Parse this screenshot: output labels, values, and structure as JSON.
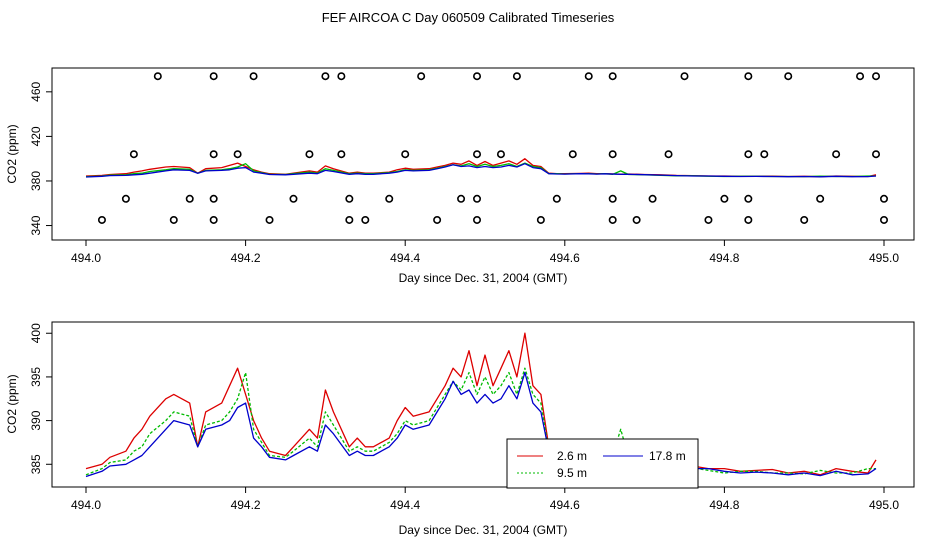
{
  "figure_title": "FEF AIRCOA C  Day 060509  Calibrated Timeseries",
  "colors": {
    "red": "#dd0000",
    "green": "#00bb00",
    "blue": "#0000cc",
    "axis": "#000000"
  },
  "chart_data": [
    {
      "type": "scatter",
      "title": "",
      "xlabel": "Day since Dec. 31, 2004 (GMT)",
      "ylabel": "CO2 (ppm)",
      "xlim": [
        494.0,
        495.0
      ],
      "ylim": [
        336,
        476
      ],
      "xticks": [
        "494.0",
        "494.2",
        "494.4",
        "494.6",
        "494.8",
        "495.0"
      ],
      "yticks": [
        "340",
        "380",
        "420",
        "460"
      ],
      "grid": false,
      "markers": {
        "y_levels": [
          345,
          364,
          404,
          474
        ],
        "x474": [
          494.09,
          494.16,
          494.21,
          494.3,
          494.32,
          494.42,
          494.49,
          494.54,
          494.63,
          494.66,
          494.75,
          494.83,
          494.88,
          494.97,
          494.99
        ],
        "x404": [
          494.06,
          494.16,
          494.19,
          494.28,
          494.32,
          494.4,
          494.49,
          494.52,
          494.61,
          494.66,
          494.73,
          494.83,
          494.85,
          494.94,
          494.99
        ],
        "x364": [
          494.05,
          494.13,
          494.16,
          494.26,
          494.33,
          494.38,
          494.47,
          494.49,
          494.59,
          494.66,
          494.71,
          494.8,
          494.83,
          494.92,
          495.0
        ],
        "x345": [
          494.02,
          494.11,
          494.16,
          494.23,
          494.33,
          494.35,
          494.44,
          494.49,
          494.57,
          494.66,
          494.69,
          494.78,
          494.83,
          494.9,
          495.0
        ]
      }
    },
    {
      "type": "line",
      "title": "",
      "xlabel": "Day since Dec. 31, 2004 (GMT)",
      "ylabel": "CO2 (ppm)",
      "xlim": [
        494.0,
        495.0
      ],
      "ylim": [
        383.2,
        400.6
      ],
      "xticks": [
        "494.0",
        "494.2",
        "494.4",
        "494.6",
        "494.8",
        "495.0"
      ],
      "yticks": [
        "385",
        "390",
        "395",
        "400"
      ],
      "grid": false,
      "legend_position": "bottom-center",
      "series": [
        {
          "name": "2.6 m",
          "color": "#dd0000",
          "x": [
            494.0,
            494.02,
            494.03,
            494.05,
            494.06,
            494.07,
            494.08,
            494.1,
            494.11,
            494.13,
            494.14,
            494.15,
            494.17,
            494.18,
            494.19,
            494.2,
            494.21,
            494.22,
            494.23,
            494.25,
            494.26,
            494.28,
            494.29,
            494.3,
            494.31,
            494.33,
            494.34,
            494.35,
            494.36,
            494.38,
            494.39,
            494.4,
            494.41,
            494.43,
            494.44,
            494.45,
            494.46,
            494.47,
            494.48,
            494.49,
            494.5,
            494.51,
            494.52,
            494.53,
            494.54,
            494.55,
            494.56,
            494.57,
            494.58,
            494.59,
            494.6,
            494.62,
            494.63,
            494.64,
            494.65,
            494.67,
            494.68,
            494.7,
            494.72,
            494.74,
            494.76,
            494.78,
            494.8,
            494.82,
            494.84,
            494.86,
            494.88,
            494.9,
            494.92,
            494.94,
            494.96,
            494.98,
            494.99
          ],
          "y": [
            384.5,
            385.0,
            385.8,
            386.5,
            388.0,
            389.0,
            390.5,
            392.5,
            393.0,
            392.0,
            387.0,
            391.0,
            392.0,
            394.0,
            396.0,
            393.0,
            390.0,
            388.0,
            386.5,
            386.0,
            387.0,
            389.0,
            388.0,
            393.5,
            391.0,
            387.0,
            388.0,
            387.0,
            387.0,
            388.0,
            390.0,
            391.5,
            390.5,
            391.0,
            392.5,
            394.0,
            396.0,
            395.0,
            398.0,
            394.0,
            397.5,
            394.0,
            396.0,
            398.0,
            395.0,
            400.0,
            394.0,
            393.0,
            387.0,
            386.5,
            386.5,
            386.8,
            387.0,
            386.5,
            386.6,
            386.2,
            386.3,
            385.8,
            385.5,
            385.0,
            384.8,
            384.5,
            384.5,
            384.2,
            384.3,
            384.4,
            384.0,
            384.2,
            383.8,
            384.5,
            384.2,
            384.0,
            385.5
          ]
        },
        {
          "name": "9.5 m",
          "color": "#00bb00",
          "x": [
            494.0,
            494.02,
            494.03,
            494.05,
            494.06,
            494.07,
            494.08,
            494.1,
            494.11,
            494.13,
            494.14,
            494.15,
            494.17,
            494.18,
            494.19,
            494.2,
            494.21,
            494.22,
            494.23,
            494.25,
            494.26,
            494.28,
            494.29,
            494.3,
            494.31,
            494.33,
            494.34,
            494.35,
            494.36,
            494.38,
            494.39,
            494.4,
            494.41,
            494.43,
            494.44,
            494.45,
            494.46,
            494.47,
            494.48,
            494.49,
            494.5,
            494.51,
            494.52,
            494.53,
            494.54,
            494.55,
            494.56,
            494.57,
            494.58,
            494.59,
            494.6,
            494.62,
            494.63,
            494.64,
            494.65,
            494.66,
            494.67,
            494.68,
            494.7,
            494.72,
            494.74,
            494.76,
            494.78,
            494.8,
            494.82,
            494.84,
            494.86,
            494.88,
            494.9,
            494.92,
            494.94,
            494.96,
            494.98,
            494.99
          ],
          "y": [
            383.8,
            384.5,
            385.2,
            385.5,
            386.5,
            387.0,
            388.5,
            390.0,
            391.0,
            390.5,
            387.0,
            389.5,
            390.0,
            391.0,
            392.5,
            395.5,
            389.0,
            387.5,
            386.0,
            385.8,
            386.5,
            388.0,
            387.0,
            391.0,
            389.5,
            386.5,
            387.0,
            386.5,
            386.5,
            387.5,
            388.5,
            390.0,
            389.5,
            390.0,
            391.5,
            393.0,
            394.5,
            393.5,
            395.5,
            393.0,
            395.0,
            393.0,
            394.0,
            395.5,
            393.0,
            396.0,
            393.0,
            392.0,
            386.5,
            386.5,
            386.3,
            386.6,
            386.6,
            386.3,
            386.5,
            386.0,
            389.0,
            385.8,
            385.5,
            385.0,
            384.6,
            384.6,
            384.3,
            384.0,
            384.2,
            384.2,
            384.0,
            384.0,
            383.9,
            384.3,
            384.0,
            384.0,
            384.5,
            384.5
          ]
        },
        {
          "name": "17.8 m",
          "color": "#0000cc",
          "x": [
            494.0,
            494.02,
            494.03,
            494.05,
            494.06,
            494.07,
            494.08,
            494.1,
            494.11,
            494.13,
            494.14,
            494.15,
            494.17,
            494.18,
            494.19,
            494.2,
            494.21,
            494.22,
            494.23,
            494.25,
            494.26,
            494.28,
            494.29,
            494.3,
            494.31,
            494.33,
            494.34,
            494.35,
            494.36,
            494.38,
            494.39,
            494.4,
            494.41,
            494.43,
            494.44,
            494.45,
            494.46,
            494.47,
            494.48,
            494.49,
            494.5,
            494.51,
            494.52,
            494.53,
            494.54,
            494.55,
            494.56,
            494.57,
            494.58,
            494.59,
            494.6,
            494.62,
            494.63,
            494.64,
            494.65,
            494.67,
            494.68,
            494.7,
            494.72,
            494.74,
            494.76,
            494.78,
            494.8,
            494.82,
            494.84,
            494.86,
            494.88,
            494.9,
            494.92,
            494.94,
            494.96,
            494.98,
            494.99
          ],
          "y": [
            383.6,
            384.2,
            384.8,
            385.0,
            385.5,
            386.0,
            387.0,
            389.0,
            390.0,
            389.5,
            387.0,
            389.0,
            389.5,
            390.0,
            391.5,
            392.0,
            388.0,
            387.0,
            385.8,
            385.5,
            386.0,
            387.0,
            386.5,
            389.5,
            388.5,
            386.0,
            386.5,
            386.0,
            386.0,
            387.0,
            388.0,
            389.5,
            389.0,
            389.5,
            391.0,
            392.5,
            394.5,
            393.0,
            393.5,
            392.0,
            393.0,
            392.0,
            392.5,
            394.0,
            392.5,
            395.5,
            392.0,
            391.0,
            386.5,
            386.3,
            386.2,
            386.5,
            386.4,
            386.2,
            386.4,
            386.0,
            386.0,
            385.6,
            385.3,
            384.8,
            384.5,
            384.5,
            384.2,
            384.0,
            384.1,
            384.0,
            383.8,
            384.0,
            383.7,
            384.2,
            383.8,
            383.9,
            384.5
          ]
        }
      ]
    }
  ]
}
